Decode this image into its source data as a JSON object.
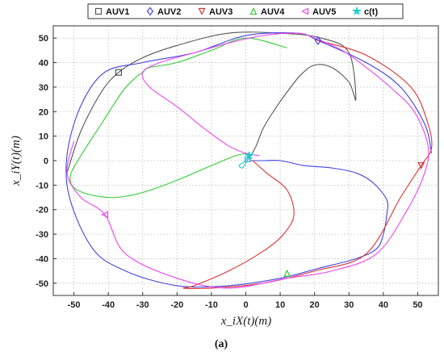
{
  "caption": "(a)",
  "chart_data": {
    "type": "line",
    "xlabel": "x_iX(t)(m)",
    "ylabel": "x_iY(t)(m)",
    "xlim": [
      -56,
      56
    ],
    "ylim": [
      -55,
      55
    ],
    "xticks": [
      -50,
      -40,
      -30,
      -20,
      -10,
      0,
      10,
      20,
      30,
      40,
      50
    ],
    "yticks": [
      -50,
      -40,
      -30,
      -20,
      -10,
      0,
      10,
      20,
      30,
      40,
      50
    ],
    "grid": true,
    "legend": "top-center",
    "series": [
      {
        "name": "AUV1",
        "color": "#555555",
        "marker": "square",
        "x": [
          1,
          3,
          5,
          8,
          12,
          16,
          20,
          25,
          30,
          32,
          30,
          22,
          10,
          -5,
          -20,
          -30,
          -37,
          -42,
          -48,
          -52
        ],
        "y": [
          1,
          6,
          13,
          20,
          28,
          35,
          39,
          38,
          32,
          25,
          44,
          50,
          52,
          52,
          47,
          42,
          36,
          28,
          12,
          -5
        ],
        "marker_at": [
          -37,
          36
        ]
      },
      {
        "name": "AUV2",
        "color": "#4444dd",
        "marker": "diamond",
        "x": [
          1,
          5,
          10,
          17,
          25,
          32,
          37,
          41,
          41,
          40,
          38,
          32,
          21,
          10,
          -5,
          -20,
          -35,
          -45,
          -52,
          -50,
          -42,
          -30,
          -15,
          0,
          15,
          21,
          35,
          45,
          52,
          54
        ],
        "y": [
          0,
          0,
          0,
          -2,
          -3,
          -5,
          -9,
          -16,
          -22,
          -30,
          -36,
          -40,
          -44,
          -48,
          -51,
          -51,
          -45,
          -35,
          -10,
          15,
          35,
          40,
          44,
          51,
          52,
          49,
          40,
          30,
          15,
          3
        ],
        "marker_at": [
          21,
          49
        ]
      },
      {
        "name": "AUV3",
        "color": "#dd3333",
        "marker": "triangle-down",
        "x": [
          2,
          6,
          12,
          14,
          11,
          5,
          -5,
          -15,
          -18,
          -10,
          5,
          20,
          35,
          45,
          51,
          54,
          53,
          48,
          35,
          21
        ],
        "y": [
          0,
          -5,
          -12,
          -22,
          -30,
          -37,
          -45,
          -51,
          -52,
          -52,
          -50,
          -45,
          -38,
          -15,
          -2,
          5,
          15,
          30,
          43,
          49
        ],
        "marker_at": [
          51,
          -2
        ]
      },
      {
        "name": "AUV4",
        "color": "#33cc33",
        "marker": "triangle-up",
        "x": [
          1,
          -3,
          -10,
          -20,
          -30,
          -38,
          -45,
          -50,
          -51,
          -48,
          -42,
          -36,
          -32,
          -30,
          -28,
          -20,
          -10,
          0,
          12
        ],
        "y": [
          3,
          2,
          -2,
          -8,
          -13,
          -15,
          -14,
          -11,
          -6,
          2,
          15,
          28,
          34,
          36,
          38,
          40,
          45,
          50,
          46
        ],
        "marker_at": [
          12,
          -46
        ]
      },
      {
        "name": "AUV5",
        "color": "#ee44ee",
        "marker": "triangle-left",
        "x": [
          4,
          0,
          -5,
          -12,
          -20,
          -28,
          -30,
          -25,
          -15,
          -5,
          5,
          15,
          20,
          28,
          35,
          42,
          49,
          53,
          52,
          47,
          38,
          25,
          12,
          -5,
          -20,
          -35,
          -41,
          -48,
          -52,
          -50
        ],
        "y": [
          2,
          3,
          6,
          13,
          22,
          30,
          36,
          40,
          44,
          48,
          51,
          52,
          50,
          45,
          38,
          30,
          20,
          6,
          -5,
          -20,
          -38,
          -45,
          -48,
          -52,
          -48,
          -38,
          -22,
          -15,
          -5,
          8
        ],
        "marker_at": [
          -41,
          -22
        ]
      },
      {
        "name": "c(t)",
        "color": "#22cccc",
        "marker": "star",
        "x": [
          1,
          0,
          -1,
          -2,
          -1,
          0,
          1,
          2,
          1
        ],
        "y": [
          2,
          0,
          -1,
          -2,
          -3,
          -1,
          1,
          3,
          2
        ],
        "marker_at": [
          1,
          2
        ]
      }
    ]
  }
}
